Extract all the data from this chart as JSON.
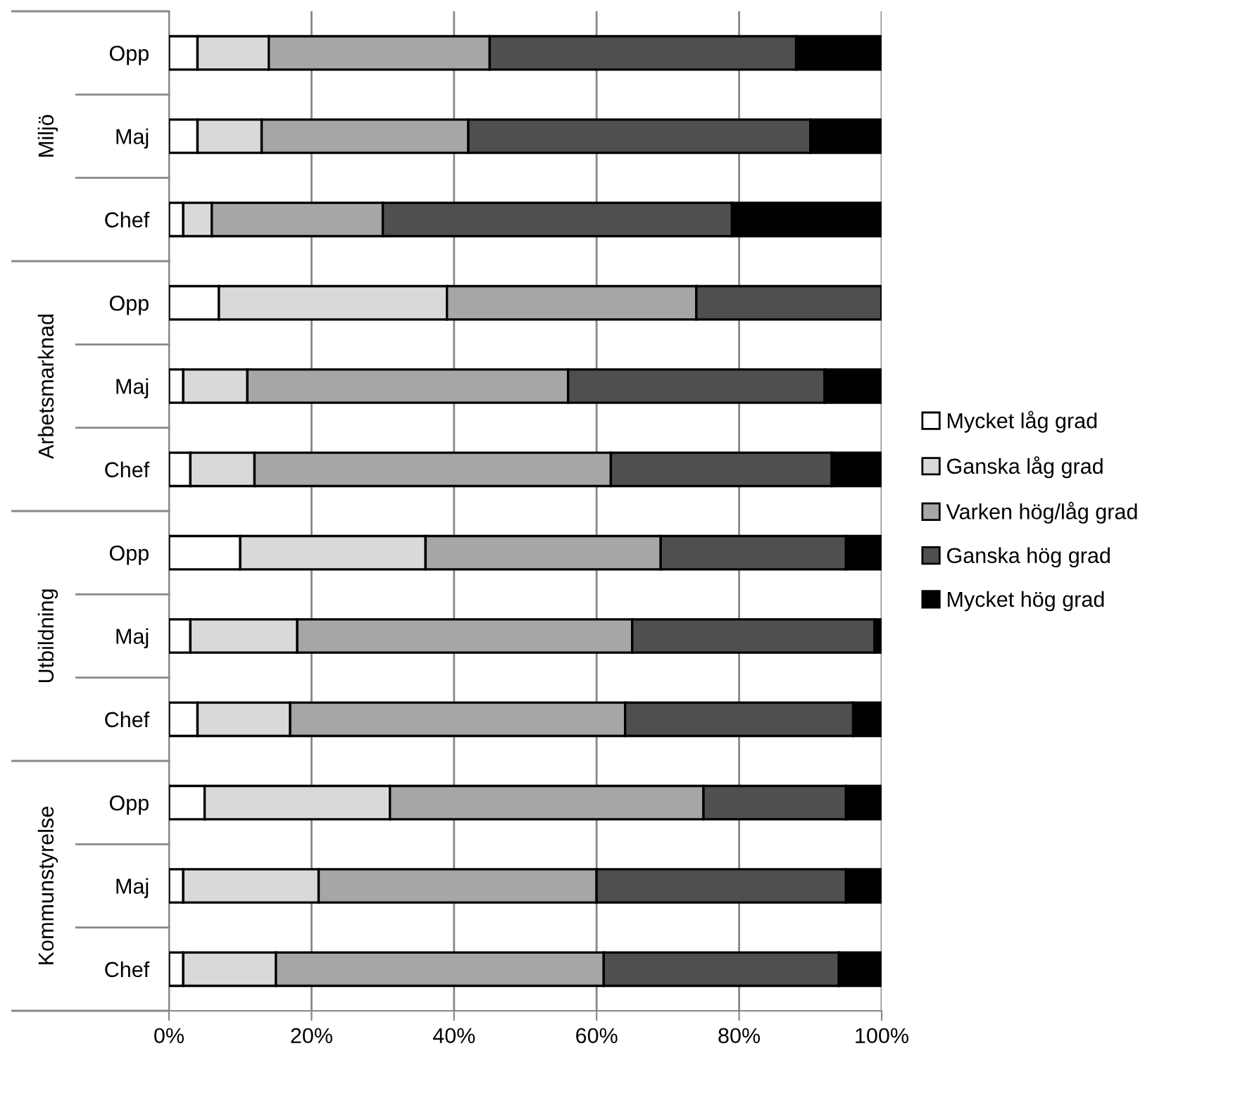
{
  "chart_data": {
    "type": "bar",
    "orientation": "horizontal",
    "stacked": true,
    "categories": [
      "Opp",
      "Maj",
      "Chef",
      "Opp",
      "Maj",
      "Chef",
      "Opp",
      "Maj",
      "Chef",
      "Opp",
      "Maj",
      "Chef"
    ],
    "annotations": [
      "Miljö",
      "Arbetsmarknad",
      "Utbildning",
      "Kommunstyrelse"
    ],
    "series": [
      {
        "name": "Mycket låg grad",
        "color": "#ffffff",
        "values": [
          4,
          4,
          2,
          7,
          2,
          3,
          10,
          3,
          4,
          5,
          2,
          2
        ]
      },
      {
        "name": "Ganska låg grad",
        "color": "#d9d9d9",
        "values": [
          10,
          9,
          4,
          32,
          9,
          9,
          26,
          15,
          13,
          26,
          19,
          13
        ]
      },
      {
        "name": "Varken hög/låg grad",
        "color": "#a6a6a6",
        "values": [
          31,
          29,
          24,
          35,
          45,
          50,
          33,
          47,
          47,
          44,
          39,
          46
        ]
      },
      {
        "name": "Ganska hög grad",
        "color": "#4f4f4f",
        "values": [
          43,
          48,
          49,
          26,
          36,
          31,
          26,
          34,
          32,
          20,
          35,
          33
        ]
      },
      {
        "name": "Mycket hög grad",
        "color": "#000000",
        "values": [
          12,
          10,
          21,
          0,
          8,
          7,
          5,
          1,
          4,
          5,
          5,
          6
        ]
      }
    ],
    "xlim": [
      0,
      100
    ],
    "xticks": [
      {
        "value": 0,
        "label": "0%"
      },
      {
        "value": 20,
        "label": "20%"
      },
      {
        "value": 40,
        "label": "40%"
      },
      {
        "value": 60,
        "label": "60%"
      },
      {
        "value": 80,
        "label": "80%"
      },
      {
        "value": 100,
        "label": "100%"
      }
    ],
    "grid": "x",
    "legend": "right"
  }
}
